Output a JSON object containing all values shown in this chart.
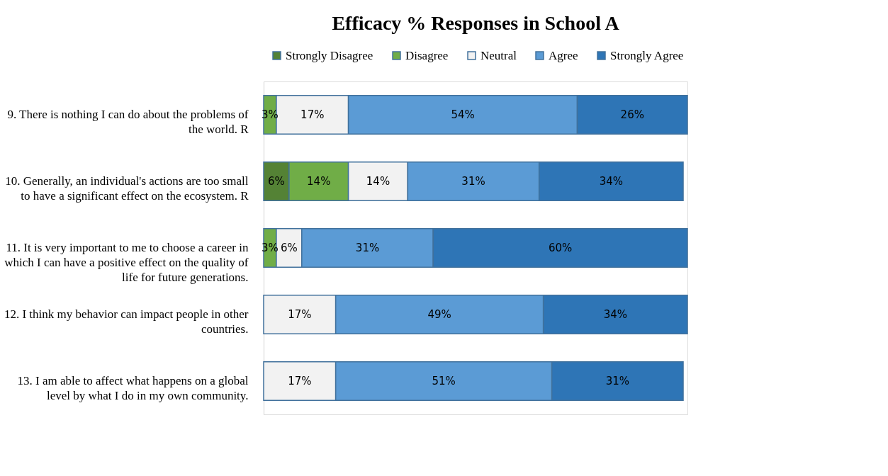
{
  "chart_data": {
    "type": "bar",
    "orientation": "horizontal",
    "stacked": true,
    "title": "Efficacy % Responses in School A",
    "categories": [
      "9. There is nothing I can do about the problems of the world. R",
      "10. Generally, an individual's actions are too small to have a significant effect on the ecosystem. R",
      "11. It is very important to me to choose a career in which I can have a positive effect on the quality of life for future generations.",
      "12. I think my behavior can impact people in other countries.",
      "13. I am able to affect what happens on a global level by what I do in my own community."
    ],
    "legend": "top",
    "series": [
      {
        "name": "Strongly Disagree",
        "color": "#548235",
        "values": [
          null,
          6,
          null,
          null,
          null
        ],
        "value_labels": [
          null,
          "6%",
          null,
          null,
          null
        ]
      },
      {
        "name": "Disagree",
        "color": "#70ad47",
        "values": [
          3,
          14,
          3,
          null,
          null
        ],
        "value_labels": [
          "3%",
          "14%",
          "3%",
          null,
          null
        ]
      },
      {
        "name": "Neutral",
        "color": "#f2f2f2",
        "values": [
          17,
          14,
          6,
          17,
          17
        ],
        "value_labels": [
          "17%",
          "14%",
          "6%",
          "17%",
          "17%"
        ]
      },
      {
        "name": "Agree",
        "color": "#5b9bd5",
        "values": [
          54,
          31,
          31,
          49,
          51
        ],
        "value_labels": [
          "54%",
          "31%",
          "31%",
          "49%",
          "51%"
        ]
      },
      {
        "name": "Strongly Agree",
        "color": "#2e75b6",
        "values": [
          26,
          34,
          60,
          34,
          31
        ],
        "value_labels": [
          "26%",
          "34%",
          "60%",
          "34%",
          "31%"
        ]
      }
    ]
  }
}
